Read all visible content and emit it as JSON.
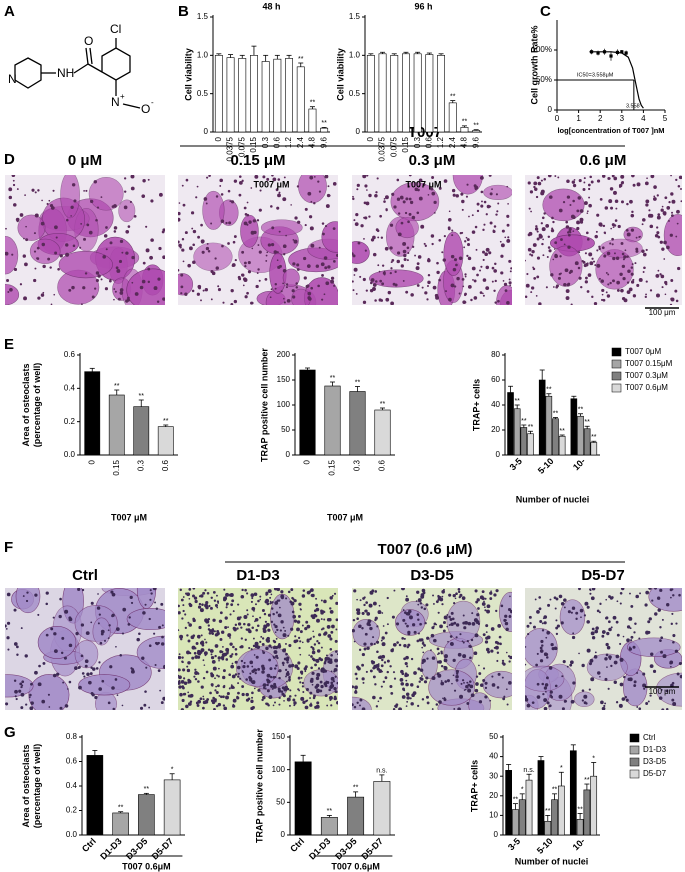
{
  "figure": {
    "panels": [
      "A",
      "B",
      "C",
      "D",
      "E",
      "F",
      "G"
    ],
    "structure_labels": [
      "Cl",
      "O",
      "N",
      "NH",
      "N",
      "+",
      "O",
      "-"
    ],
    "d_header": "T007",
    "d_captions": [
      "0 μM",
      "0.15 μM",
      "0.3 μM",
      "0.6 μM"
    ],
    "f_header": "T007 (0.6 μM)",
    "f_captions": [
      "Ctrl",
      "D1-D3",
      "D3-D5",
      "D5-D7"
    ],
    "scale_bar": "100 μm"
  },
  "chart_data": [
    {
      "type": "bar",
      "title": "48 h",
      "ylabel": "Cell viability",
      "xlabel": "T007 μM",
      "categories": [
        "0",
        "0.0375",
        "0.075",
        "0.15",
        "0.3",
        "0.6",
        "1.2",
        "2.4",
        "4.8",
        "9.6"
      ],
      "values": [
        1.0,
        0.97,
        0.96,
        1.0,
        0.92,
        0.95,
        0.96,
        0.85,
        0.3,
        0.05
      ],
      "errors": [
        0.02,
        0.04,
        0.04,
        0.12,
        0.08,
        0.05,
        0.04,
        0.05,
        0.03,
        0.01
      ],
      "sig": [
        null,
        null,
        null,
        null,
        null,
        null,
        null,
        "**",
        "**",
        "**"
      ],
      "color": "#ffffff",
      "ylim": [
        0,
        1.5
      ],
      "yticks": [
        0,
        {
          "value": 0.5,
          "label": "0.5"
        },
        {
          "value": 1,
          "label": "1.0"
        },
        {
          "value": 1.5,
          "label": "1.5"
        }
      ]
    },
    {
      "type": "bar",
      "title": "96 h",
      "ylabel": "Cell viability",
      "xlabel": "T007 μM",
      "categories": [
        "0",
        "0.0375",
        "0.075",
        "0.15",
        "0.3",
        "0.6",
        "1.2",
        "2.4",
        "4.8",
        "9.6"
      ],
      "values": [
        1.0,
        1.02,
        1.0,
        1.02,
        1.02,
        1.01,
        1.0,
        0.38,
        0.06,
        0.02
      ],
      "errors": [
        0.02,
        0.02,
        0.02,
        0.02,
        0.02,
        0.02,
        0.02,
        0.03,
        0.02,
        0.01
      ],
      "sig": [
        null,
        null,
        null,
        null,
        null,
        null,
        null,
        "**",
        "**",
        "**"
      ],
      "color": "#ffffff",
      "ylim": [
        0,
        1.5
      ],
      "yticks": [
        0,
        {
          "value": 0.5,
          "label": "0.5"
        },
        {
          "value": 1,
          "label": "1.0"
        },
        {
          "value": 1.5,
          "label": "1.5"
        }
      ]
    },
    {
      "type": "scatter",
      "ylabel": "Cell growth Rate%",
      "xlabel": "log[concentration of T007 ]nM",
      "x": [
        1.6,
        1.9,
        2.2,
        2.5,
        2.8,
        3.0,
        3.2
      ],
      "values": [
        97,
        95,
        97,
        90,
        96,
        97,
        95
      ],
      "errors": [
        4,
        4,
        5,
        8,
        5,
        3,
        4
      ],
      "fit_x": [
        1.5,
        2.5,
        3.0,
        3.3,
        3.5,
        3.6,
        3.7,
        3.8,
        3.9,
        4.0
      ],
      "fit_values": [
        97,
        97,
        95,
        88,
        70,
        52,
        35,
        18,
        8,
        3
      ],
      "ic50": 3.558,
      "annotation": "IC50=3.558μM",
      "color": "#000000",
      "xlim": [
        0,
        5
      ],
      "xticks": [
        0,
        1,
        2,
        3,
        4,
        5
      ],
      "ylim": [
        0,
        100
      ],
      "yticks": [
        0,
        {
          "value": 50,
          "label": "50%"
        },
        {
          "value": 100,
          "label": "100%"
        }
      ]
    },
    {
      "type": "bar",
      "ylabel": [
        "Area of osteoclasts",
        "(percentage of well)"
      ],
      "xlabel": "T007 μM",
      "categories": [
        "0",
        "0.15",
        "0.3",
        "0.6"
      ],
      "values": [
        0.5,
        0.36,
        0.29,
        0.17
      ],
      "errors": [
        0.02,
        0.03,
        0.04,
        0.01
      ],
      "sig": [
        null,
        "**",
        "**",
        "**"
      ],
      "colors": [
        "#000000",
        "#a6a6a6",
        "#808080",
        "#d9d9d9"
      ],
      "ylim": [
        0,
        0.6
      ],
      "yticks": [
        {
          "value": 0,
          "label": "0.0"
        },
        {
          "value": 0.2,
          "label": "0.2"
        },
        {
          "value": 0.4,
          "label": "0.4"
        },
        {
          "value": 0.6,
          "label": "0.6"
        }
      ]
    },
    {
      "type": "bar",
      "ylabel": "TRAP positive cell number",
      "xlabel": "T007 μM",
      "categories": [
        "0",
        "0.15",
        "0.3",
        "0.6"
      ],
      "values": [
        170,
        138,
        127,
        90
      ],
      "errors": [
        4,
        8,
        10,
        4
      ],
      "sig": [
        null,
        "**",
        "**",
        "**"
      ],
      "colors": [
        "#000000",
        "#a6a6a6",
        "#808080",
        "#d9d9d9"
      ],
      "ylim": [
        0,
        200
      ],
      "yticks": [
        0,
        50,
        100,
        150,
        200
      ]
    },
    {
      "type": "bar",
      "ylabel": "TRAP+ cells",
      "xlabel": "Number of nuclei",
      "categories": [
        "3-5",
        "5-10",
        "10-"
      ],
      "series": [
        {
          "name": "T007 0μM",
          "color": "#000000",
          "values": [
            50,
            60,
            45
          ],
          "errors": [
            5,
            8,
            2
          ],
          "sig": [
            null,
            null,
            null
          ]
        },
        {
          "name": "T007 0.15μM",
          "color": "#a6a6a6",
          "values": [
            37,
            47,
            31
          ],
          "errors": [
            3,
            2,
            2
          ],
          "sig": [
            "**",
            "**",
            "**"
          ]
        },
        {
          "name": "T007 0.3μM",
          "color": "#808080",
          "values": [
            22,
            29,
            21
          ],
          "errors": [
            2,
            1,
            2
          ],
          "sig": [
            "**",
            "**",
            "**"
          ]
        },
        {
          "name": "T007 0.6μM",
          "color": "#d9d9d9",
          "values": [
            17,
            15,
            10
          ],
          "errors": [
            2,
            1,
            1
          ],
          "sig": [
            "**",
            "**",
            "**"
          ]
        }
      ],
      "ylim": [
        0,
        80
      ],
      "yticks": [
        0,
        20,
        40,
        60,
        80
      ],
      "legend": "right"
    },
    {
      "type": "bar",
      "ylabel": [
        "Area of osteoclasts",
        "(percentage of well)"
      ],
      "group_label": "T007 0.6μM",
      "categories": [
        "Ctrl",
        "D1-D3",
        "D3-D5",
        "D5-D7"
      ],
      "values": [
        0.65,
        0.18,
        0.33,
        0.45
      ],
      "errors": [
        0.04,
        0.01,
        0.01,
        0.05
      ],
      "sig": [
        null,
        "**",
        "**",
        "*"
      ],
      "colors": [
        "#000000",
        "#a6a6a6",
        "#808080",
        "#d9d9d9"
      ],
      "ylim": [
        0,
        0.8
      ],
      "yticks": [
        {
          "value": 0,
          "label": "0.0"
        },
        {
          "value": 0.2,
          "label": "0.2"
        },
        {
          "value": 0.4,
          "label": "0.4"
        },
        {
          "value": 0.6,
          "label": "0.6"
        },
        {
          "value": 0.8,
          "label": "0.8"
        }
      ]
    },
    {
      "type": "bar",
      "ylabel": "TRAP positive cell number",
      "group_label": "T007 0.6μM",
      "categories": [
        "Ctrl",
        "D1-D3",
        "D3-D5",
        "D5-D7"
      ],
      "values": [
        112,
        27,
        58,
        82
      ],
      "errors": [
        10,
        3,
        8,
        10
      ],
      "sig": [
        null,
        "**",
        "**",
        "n.s."
      ],
      "colors": [
        "#000000",
        "#a6a6a6",
        "#808080",
        "#d9d9d9"
      ],
      "ylim": [
        0,
        150
      ],
      "yticks": [
        0,
        50,
        100,
        150
      ]
    },
    {
      "type": "bar",
      "ylabel": "TRAP+ cells",
      "xlabel": "Number of nuclei",
      "categories": [
        "3-5",
        "5-10",
        "10-"
      ],
      "series": [
        {
          "name": "Ctrl",
          "color": "#000000",
          "values": [
            33,
            38,
            43
          ],
          "errors": [
            3,
            2,
            3
          ],
          "sig": [
            null,
            null,
            null
          ]
        },
        {
          "name": "D1-D3",
          "color": "#a6a6a6",
          "values": [
            13,
            7,
            8
          ],
          "errors": [
            3,
            3,
            3
          ],
          "sig": [
            "**",
            "**",
            "**"
          ]
        },
        {
          "name": "D3-D5",
          "color": "#808080",
          "values": [
            18,
            18,
            23
          ],
          "errors": [
            3,
            3,
            3
          ],
          "sig": [
            "*",
            "**",
            "**"
          ]
        },
        {
          "name": "D5-D7",
          "color": "#d9d9d9",
          "values": [
            28,
            25,
            30
          ],
          "errors": [
            3,
            7,
            7
          ],
          "sig": [
            "n.s.",
            "*",
            "*"
          ]
        }
      ],
      "ylim": [
        0,
        50
      ],
      "yticks": [
        0,
        10,
        20,
        30,
        40,
        50
      ],
      "legend": "right"
    }
  ]
}
